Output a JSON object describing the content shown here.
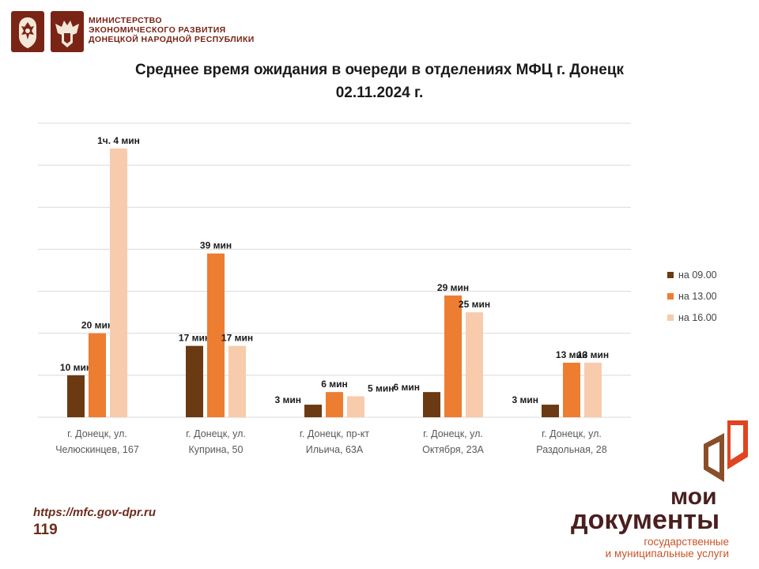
{
  "header": {
    "ministry_lines": [
      "МИНИСТЕРСТВО",
      "ЭКОНОМИЧЕСКОГО РАЗВИТИЯ",
      "ДОНЕЦКОЙ НАРОДНОЙ РЕСПУБЛИКИ"
    ],
    "emblem_left_icon": "coat-of-arms-icon",
    "emblem_right_icon": "eagle-emblem-icon",
    "emblem_color": "#7a2416"
  },
  "title_lines": [
    "Среднее время ожидания в очереди в отделениях МФЦ г. Донецк",
    "02.11.2024 г."
  ],
  "chart_data": {
    "type": "bar",
    "unit": "минуты",
    "categories": [
      [
        "г. Донецк, ул.",
        "Челюскинцев, 167"
      ],
      [
        "г. Донецк, ул.",
        "Куприна, 50"
      ],
      [
        "г. Донецк, пр-кт",
        "Ильича, 63А"
      ],
      [
        "г. Донецк, ул.",
        "Октября, 23А"
      ],
      [
        "г. Донецк, ул.",
        "Раздольная, 28"
      ]
    ],
    "series": [
      {
        "name": "на 09.00",
        "color": "#6b3a12",
        "values": [
          10,
          17,
          3,
          6,
          3
        ],
        "labels": [
          "10 мин",
          "17 мин",
          "3 мин",
          "6 мин",
          "3 мин"
        ]
      },
      {
        "name": "на 13.00",
        "color": "#ed7d31",
        "values": [
          20,
          39,
          6,
          29,
          13
        ],
        "labels": [
          "20 мин",
          "39 мин",
          "6 мин",
          "29 мин",
          "13 мин"
        ]
      },
      {
        "name": "на 16.00",
        "color": "#f8cbad",
        "values": [
          64,
          17,
          5,
          25,
          13
        ],
        "labels": [
          "1ч. 4 мин",
          "17 мин",
          "5 мин",
          "25 мин",
          "13 мин"
        ]
      }
    ],
    "ylim": [
      0,
      70
    ],
    "grid": true,
    "legend": "right"
  },
  "footer": {
    "url": "https://mfc.gov-dpr.ru",
    "page": "119"
  },
  "brand": {
    "logo_icon": "moi-dokumenty-logo-icon",
    "line1": "мои",
    "line2": "документы",
    "sub_lines": [
      "государственные",
      "и муниципальные услуги"
    ],
    "colors": {
      "dark": "#4a1f1f",
      "accent": "#c8552a"
    }
  }
}
